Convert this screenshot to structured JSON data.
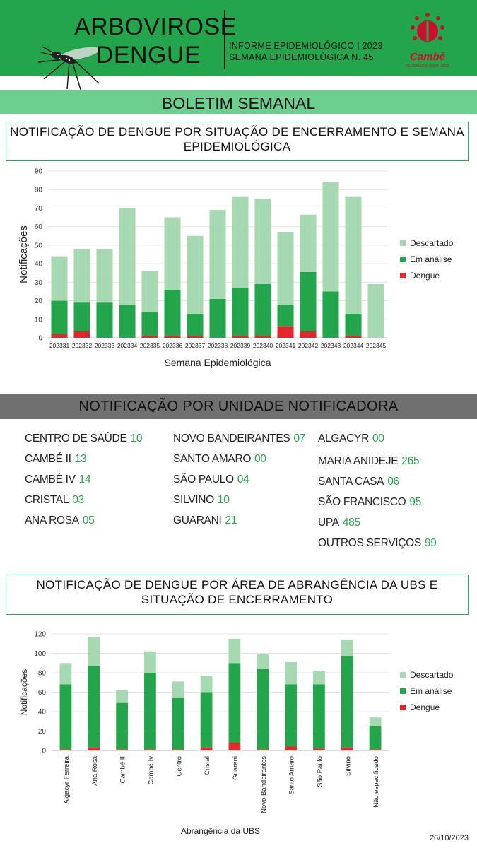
{
  "header": {
    "title_line1": "ARBOVIROSE",
    "title_line2": "DENGUE",
    "subtitle_line1": "INFORME EPIDEMIOLÓGICO | 2023",
    "subtitle_line2": "SEMANA EPIDEMIOLÓGICA  N. 45",
    "logo_text": "Cambé",
    "logo_tagline": "DE CORAÇÃO COM VOCÊ"
  },
  "banner": "BOLETIM SEMANAL",
  "section1_title": "NOTIFICAÇÃO DE DENGUE POR SITUAÇÃO DE ENCERRAMENTO E SEMANA EPIDEMIOLÓGICA",
  "section2_title": "NOTIFICAÇÃO POR UNIDADE NOTIFICADORA",
  "section3_title": "NOTIFICAÇÃO DE DENGUE POR ÁREA DE ABRANGÊNCIA DA UBS E SITUAÇÃO DE ENCERRAMENTO",
  "colors": {
    "descartado": "#a6d8b1",
    "em_analise": "#22a54b",
    "dengue": "#e8262a",
    "brand": "#22a54b"
  },
  "units": {
    "col1": [
      {
        "name": "CENTRO  DE SAÚDE",
        "value": "10"
      },
      {
        "name": "CAMBÉ II",
        "value": "13"
      },
      {
        "name": "CAMBÉ IV",
        "value": "14"
      },
      {
        "name": "CRISTAL",
        "value": "03"
      },
      {
        "name": "ANA ROSA",
        "value": "05"
      }
    ],
    "col2": [
      {
        "name": "NOVO BANDEIRANTES",
        "value": "07"
      },
      {
        "name": "SANTO AMARO",
        "value": "00"
      },
      {
        "name": "SÃO PAULO",
        "value": "04"
      },
      {
        "name": "SILVINO",
        "value": "10"
      },
      {
        "name": "GUARANI",
        "value": "21"
      }
    ],
    "col3": [
      {
        "name": "ALGACYR",
        "value": "00"
      },
      {
        "name": "MARIA ANIDEJE",
        "value": "265"
      },
      {
        "name": "SANTA CASA",
        "value": "06"
      },
      {
        "name": "SÃO FRANCISCO",
        "value": "95"
      },
      {
        "name": "UPA",
        "value": "485"
      },
      {
        "name": "OUTROS SERVIÇOS",
        "value": "99"
      }
    ]
  },
  "chart_data": [
    {
      "type": "bar",
      "stacked": true,
      "title": "",
      "xlabel": "Semana Epidemiológica",
      "ylabel": "Notificações",
      "ylim": [
        0,
        90
      ],
      "yticks": [
        0,
        10,
        20,
        30,
        40,
        50,
        60,
        70,
        80,
        90
      ],
      "legend_position": "right",
      "categories": [
        "202331",
        "202332",
        "202333",
        "202334",
        "202335",
        "202336",
        "202337",
        "202338",
        "202339",
        "202340",
        "202341",
        "202342",
        "202343",
        "202344",
        "202345"
      ],
      "series": [
        {
          "name": "Dengue",
          "color": "#e8262a",
          "values": [
            2,
            3.5,
            0,
            0,
            1,
            1,
            1,
            0,
            1,
            1,
            6,
            3.5,
            0,
            1,
            0
          ]
        },
        {
          "name": "Em análise",
          "color": "#22a54b",
          "values": [
            18,
            15.5,
            19,
            18,
            13,
            25,
            12,
            21,
            26,
            28,
            12,
            32,
            25,
            12,
            0
          ]
        },
        {
          "name": "Descartado",
          "color": "#a6d8b1",
          "values": [
            24,
            29,
            29,
            52,
            22,
            39,
            42,
            48,
            49,
            46,
            39,
            31,
            59,
            63,
            29
          ]
        }
      ]
    },
    {
      "type": "bar",
      "stacked": true,
      "title": "",
      "xlabel": "Abrangência da UBS",
      "ylabel": "Notificações",
      "ylim": [
        0,
        120
      ],
      "yticks": [
        0,
        20,
        40,
        60,
        80,
        100,
        120
      ],
      "legend_position": "right",
      "categories": [
        "Algacyr Ferreira",
        "Ana Rosa",
        "Cambé II",
        "Cambé Iv",
        "Centro",
        "Cristal",
        "Guarani",
        "Novo Bandeirantes",
        "Santo Amaro",
        "São Paulo",
        "Silvino",
        "Não especificado"
      ],
      "series": [
        {
          "name": "Dengue",
          "color": "#e8262a",
          "values": [
            1,
            3,
            1,
            1,
            1,
            3,
            8,
            1,
            4,
            2,
            3,
            1
          ]
        },
        {
          "name": "Em análise",
          "color": "#22a54b",
          "values": [
            67,
            84,
            48,
            79,
            53,
            57,
            82,
            83,
            64,
            66,
            94,
            24
          ]
        },
        {
          "name": "Descartado",
          "color": "#a6d8b1",
          "values": [
            22,
            30,
            13,
            22,
            17,
            17,
            25,
            15,
            23,
            14,
            17,
            9
          ]
        }
      ]
    }
  ],
  "date": "26/10/2023"
}
